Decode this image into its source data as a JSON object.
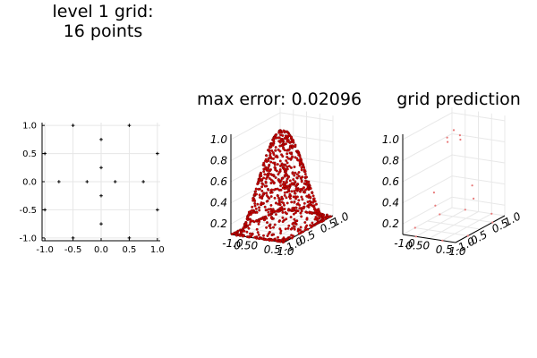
{
  "chart_data": [
    {
      "type": "scatter",
      "title": "level 1 grid:",
      "subtitle": "16 points",
      "x_ticks": [
        "-1.0",
        "-0.5",
        "0.0",
        "0.5",
        "1.0"
      ],
      "y_ticks": [
        "1.0",
        "0.5",
        "0.0",
        "-0.5",
        "-1.0"
      ],
      "xlim": [
        -1.05,
        1.05
      ],
      "ylim": [
        -1.05,
        1.05
      ],
      "grid": true,
      "points": [
        {
          "x": -0.5,
          "y": 1.0
        },
        {
          "x": 0.5,
          "y": 1.0
        },
        {
          "x": 0.0,
          "y": 0.75
        },
        {
          "x": -1.0,
          "y": 0.5
        },
        {
          "x": 1.0,
          "y": 0.5
        },
        {
          "x": 0.0,
          "y": 0.25
        },
        {
          "x": -0.75,
          "y": 0.0
        },
        {
          "x": -0.25,
          "y": 0.0
        },
        {
          "x": 0.25,
          "y": 0.0
        },
        {
          "x": 0.75,
          "y": 0.0
        },
        {
          "x": 0.0,
          "y": -0.25
        },
        {
          "x": -1.0,
          "y": -0.5
        },
        {
          "x": 1.0,
          "y": -0.5
        },
        {
          "x": 0.0,
          "y": -0.75
        },
        {
          "x": -0.5,
          "y": -1.0
        },
        {
          "x": 0.5,
          "y": -1.0
        }
      ]
    },
    {
      "type": "scatter3d",
      "title": "max error: 0.02096",
      "z_ticks": [
        "1.0",
        "0.8",
        "0.6",
        "0.4",
        "0.2"
      ],
      "x_tick_labels": [
        "-1.0",
        "0.50",
        "0.5",
        "1.0"
      ],
      "y_tick_labels": [
        "-1.0",
        "-0.5",
        "0.5",
        "1.0"
      ],
      "zlim": [
        0.1,
        1.05
      ],
      "surface": "z = cos(pi*x/2) * cos(pi*y/2)",
      "point_color": "#cc0000",
      "n_points": 900
    },
    {
      "type": "scatter3d",
      "title": "grid prediction",
      "z_ticks": [
        "1.0",
        "0.8",
        "0.6",
        "0.4",
        "0.2"
      ],
      "x_tick_labels": [
        "-1.0",
        "0.50",
        "0.5",
        "1.0"
      ],
      "y_tick_labels": [
        "-1.0",
        "-0.5",
        "0.5",
        "1.0"
      ],
      "zlim": [
        0.1,
        1.05
      ],
      "point_color": "#e87878",
      "points": [
        {
          "x": 0.0,
          "y": 0.0,
          "z": 1.0
        },
        {
          "x": -0.25,
          "y": 0.0,
          "z": 0.92
        },
        {
          "x": 0.25,
          "y": 0.0,
          "z": 0.92
        },
        {
          "x": 0.0,
          "y": 0.25,
          "z": 0.92
        },
        {
          "x": 0.0,
          "y": -0.25,
          "z": 0.92
        },
        {
          "x": -0.75,
          "y": 0.0,
          "z": 0.38
        },
        {
          "x": 0.75,
          "y": 0.0,
          "z": 0.38
        },
        {
          "x": 0.0,
          "y": 0.75,
          "z": 0.38
        },
        {
          "x": 0.0,
          "y": -0.75,
          "z": 0.38
        },
        {
          "x": -0.5,
          "y": 1.0,
          "z": 0.0
        },
        {
          "x": 0.5,
          "y": 1.0,
          "z": 0.0
        },
        {
          "x": -1.0,
          "y": 0.5,
          "z": 0.0
        },
        {
          "x": 1.0,
          "y": 0.5,
          "z": 0.0
        },
        {
          "x": -1.0,
          "y": -0.5,
          "z": 0.0
        },
        {
          "x": 1.0,
          "y": -0.5,
          "z": 0.0
        },
        {
          "x": -0.5,
          "y": -1.0,
          "z": 0.0
        },
        {
          "x": 0.5,
          "y": -1.0,
          "z": 0.0
        }
      ]
    }
  ]
}
